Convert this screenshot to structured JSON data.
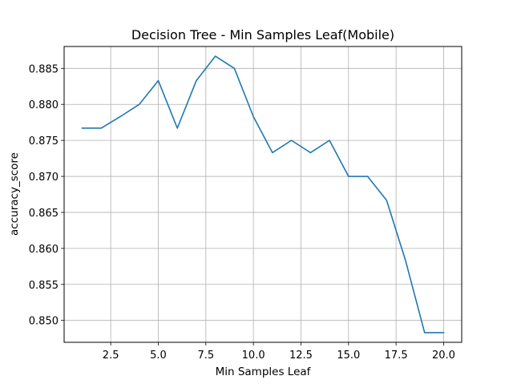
{
  "chart_data": {
    "type": "line",
    "title": "Decision Tree - Min Samples Leaf(Mobile)",
    "xlabel": "Min Samples Leaf",
    "ylabel": "accuracy_score",
    "xlim": [
      0.05,
      20.95
    ],
    "ylim": [
      0.84696,
      0.88804
    ],
    "grid": true,
    "line_color": "#1f77b4",
    "xticks": [
      {
        "value": 2.5,
        "label": "2.5"
      },
      {
        "value": 5.0,
        "label": "5.0"
      },
      {
        "value": 7.5,
        "label": "7.5"
      },
      {
        "value": 10.0,
        "label": "10.0"
      },
      {
        "value": 12.5,
        "label": "12.5"
      },
      {
        "value": 15.0,
        "label": "15.0"
      },
      {
        "value": 17.5,
        "label": "17.5"
      },
      {
        "value": 20.0,
        "label": "20.0"
      }
    ],
    "yticks": [
      {
        "value": 0.85,
        "label": "0.850"
      },
      {
        "value": 0.855,
        "label": "0.855"
      },
      {
        "value": 0.86,
        "label": "0.860"
      },
      {
        "value": 0.865,
        "label": "0.865"
      },
      {
        "value": 0.87,
        "label": "0.870"
      },
      {
        "value": 0.875,
        "label": "0.875"
      },
      {
        "value": 0.88,
        "label": "0.880"
      },
      {
        "value": 0.885,
        "label": "0.885"
      }
    ],
    "x": [
      1,
      2,
      3,
      4,
      5,
      6,
      7,
      8,
      9,
      10,
      11,
      12,
      13,
      14,
      15,
      16,
      17,
      18,
      19,
      20
    ],
    "series": [
      {
        "values": [
          0.8767,
          0.8767,
          0.8783,
          0.88,
          0.8833,
          0.8767,
          0.8833,
          0.8867,
          0.885,
          0.8783,
          0.8733,
          0.875,
          0.8733,
          0.875,
          0.87,
          0.87,
          0.8667,
          0.8583,
          0.8483,
          0.8483
        ]
      }
    ]
  }
}
